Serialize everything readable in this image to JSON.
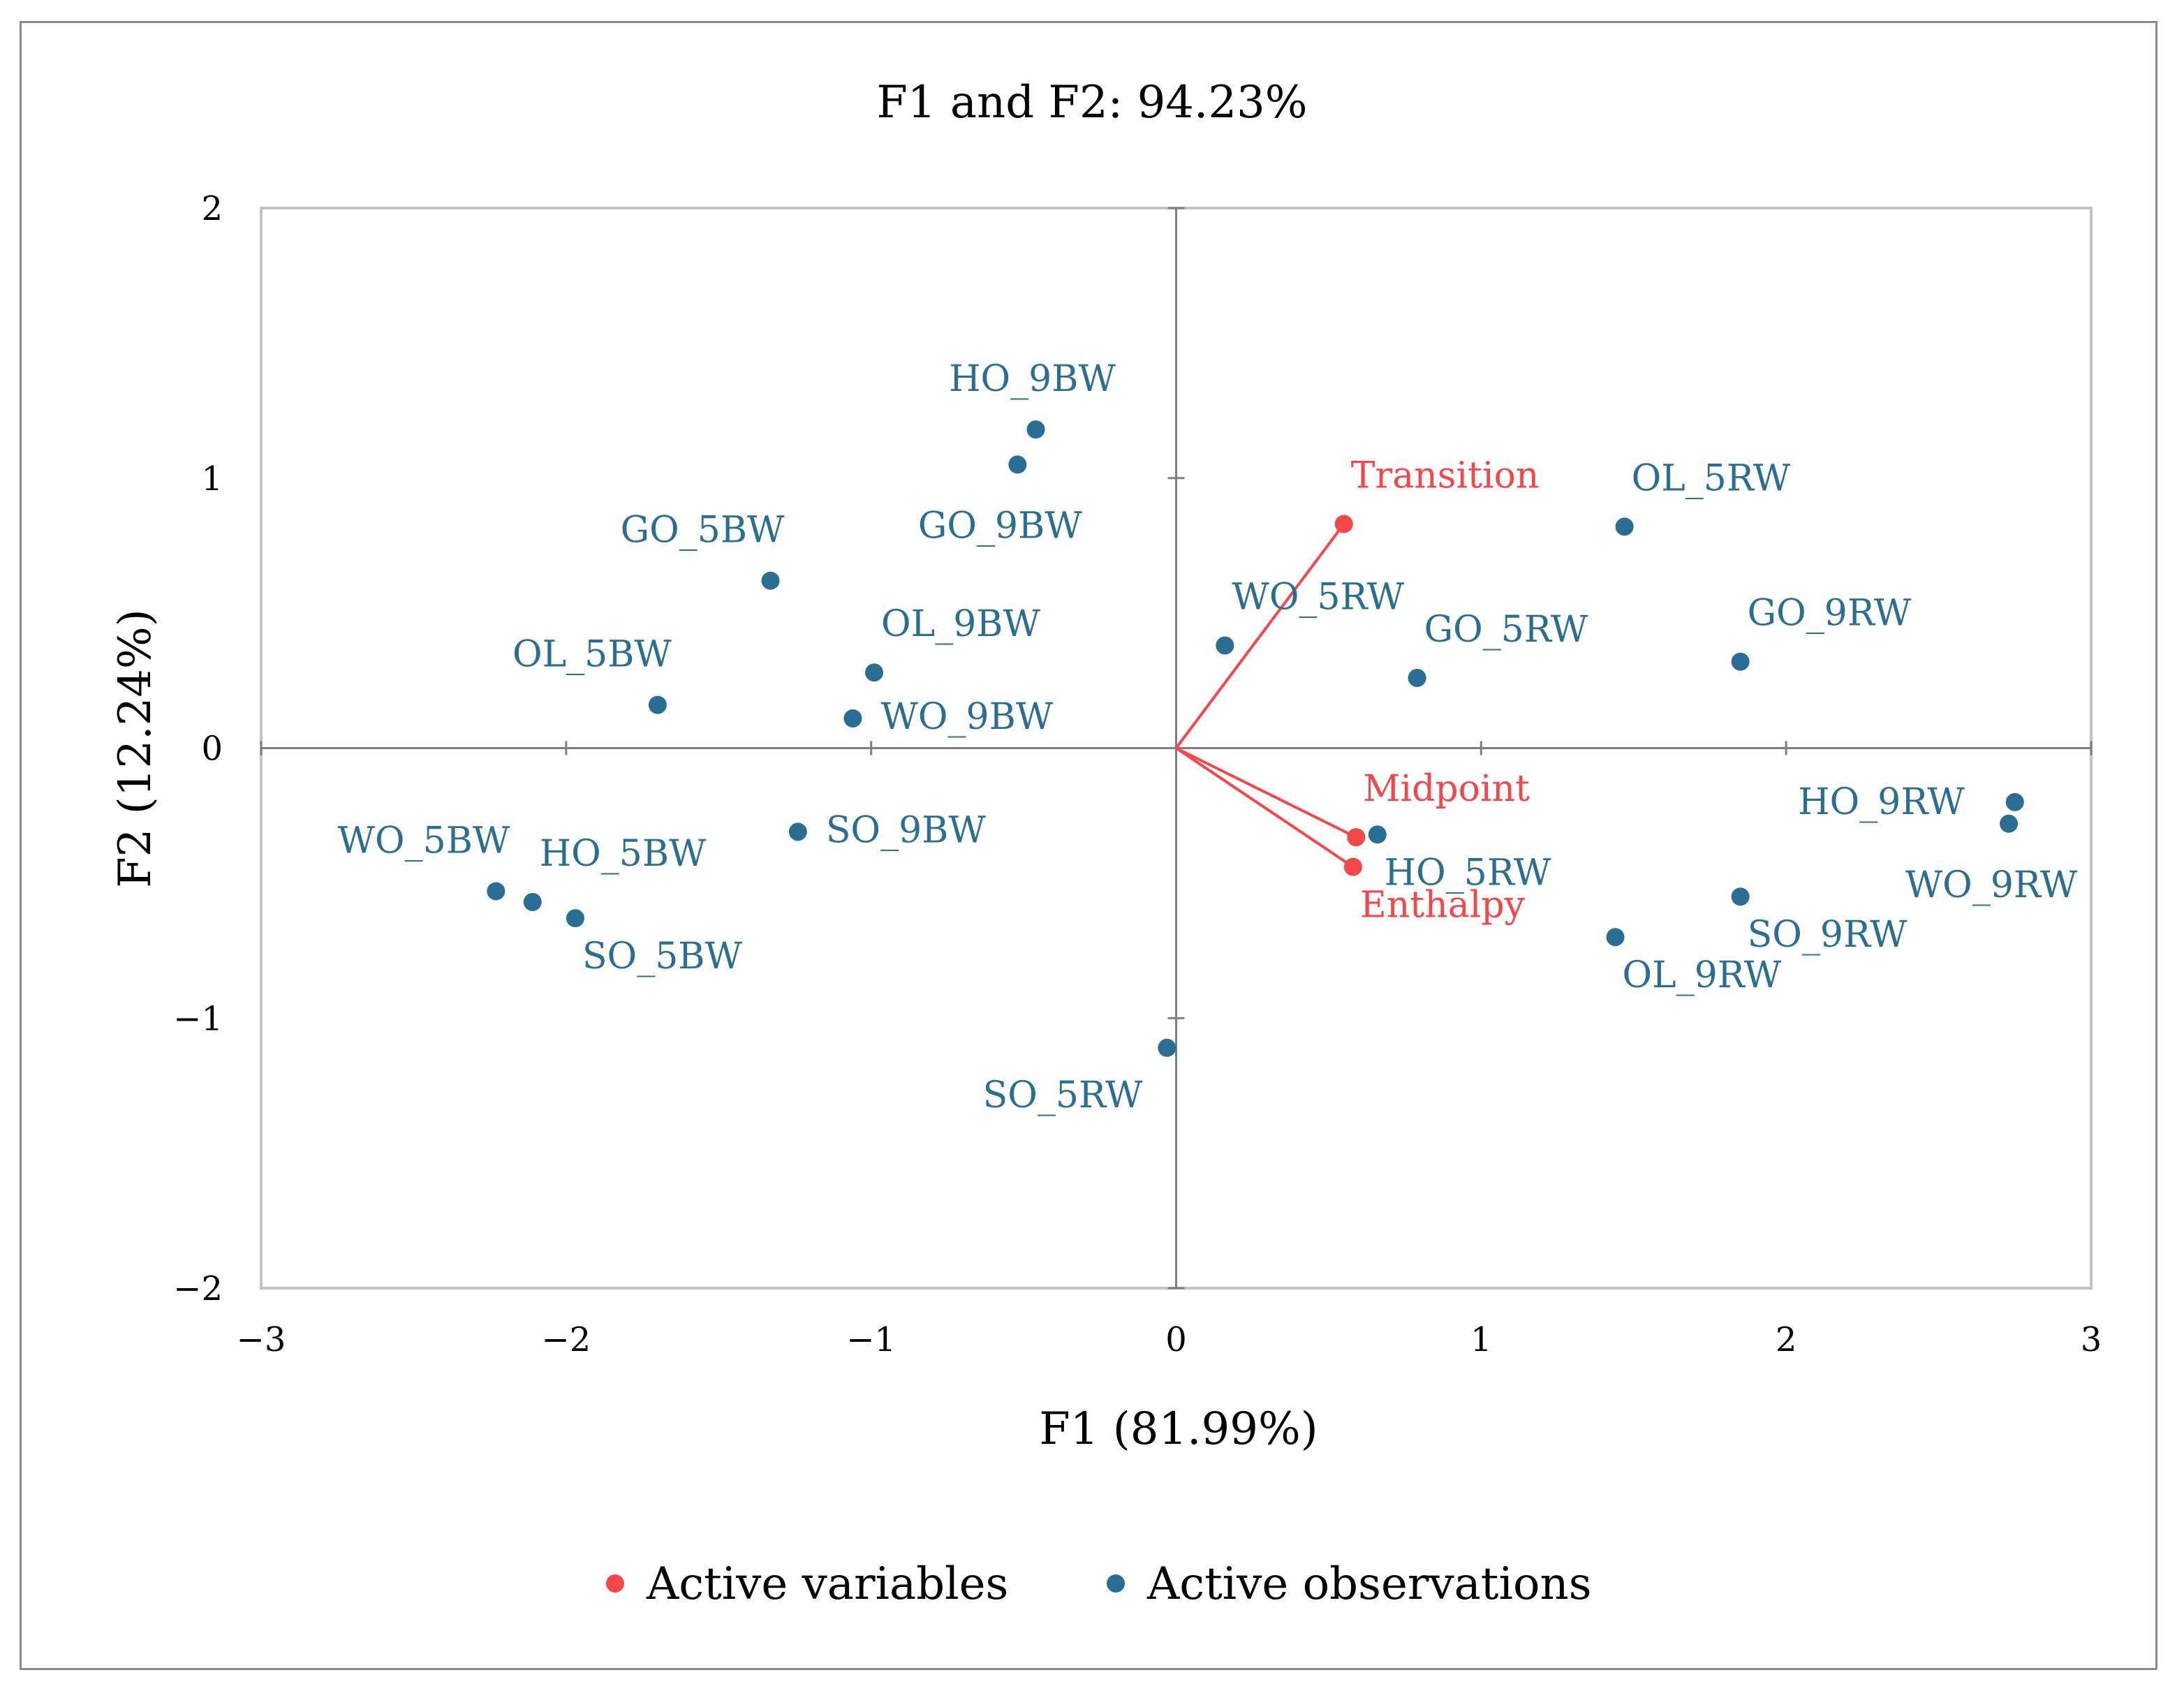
{
  "chart_data": {
    "type": "scatter",
    "title": "F1 and F2: 94.23%",
    "xlabel": "F1 (81.99%)",
    "ylabel": "F2 (12.24%)",
    "xlim": [
      -3,
      3
    ],
    "ylim": [
      -2,
      2
    ],
    "x_ticks": [
      "−3",
      "−2",
      "−1",
      "0",
      "1",
      "2",
      "3"
    ],
    "y_ticks": [
      "−2",
      "−1",
      "0",
      "1",
      "2"
    ],
    "grid": false,
    "legend_position": "bottom",
    "colors": {
      "variables": "#f4474a",
      "observations": "#2a6f93"
    },
    "series": [
      {
        "name": "Active variables",
        "kind": "vectors",
        "points": [
          {
            "label": "Transition",
            "x": 0.55,
            "y": 0.83,
            "label_pos": "above-right"
          },
          {
            "label": "Midpoint",
            "x": 0.59,
            "y": -0.33,
            "label_pos": "above-right"
          },
          {
            "label": "Enthalpy",
            "x": 0.58,
            "y": -0.44,
            "label_pos": "below-right"
          }
        ]
      },
      {
        "name": "Active observations",
        "kind": "points",
        "points": [
          {
            "label": "HO_9BW",
            "x": -0.46,
            "y": 1.18,
            "label_pos": "above"
          },
          {
            "label": "GO_9BW",
            "x": -0.52,
            "y": 1.05,
            "label_pos": "below"
          },
          {
            "label": "GO_5BW",
            "x": -1.33,
            "y": 0.62,
            "label_pos": "above-left"
          },
          {
            "label": "OL_9BW",
            "x": -0.99,
            "y": 0.28,
            "label_pos": "above-right"
          },
          {
            "label": "OL_5BW",
            "x": -1.7,
            "y": 0.16,
            "label_pos": "above-left"
          },
          {
            "label": "WO_9BW",
            "x": -1.06,
            "y": 0.11,
            "label_pos": "right"
          },
          {
            "label": "SO_9BW",
            "x": -1.24,
            "y": -0.31,
            "label_pos": "right"
          },
          {
            "label": "WO_5BW",
            "x": -2.23,
            "y": -0.53,
            "label_pos": "above-left"
          },
          {
            "label": "HO_5BW",
            "x": -2.11,
            "y": -0.57,
            "label_pos": "above-right"
          },
          {
            "label": "SO_5BW",
            "x": -1.97,
            "y": -0.63,
            "label_pos": "below-right"
          },
          {
            "label": "SO_5RW",
            "x": -0.03,
            "y": -1.11,
            "label_pos": "below-left"
          },
          {
            "label": "WO_5RW",
            "x": 0.16,
            "y": 0.38,
            "label_pos": "above-right"
          },
          {
            "label": "GO_5RW",
            "x": 0.79,
            "y": 0.26,
            "label_pos": "above-right"
          },
          {
            "label": "HO_5RW",
            "x": 0.66,
            "y": -0.32,
            "label_pos": "below-right"
          },
          {
            "label": "OL_5RW",
            "x": 1.47,
            "y": 0.82,
            "label_pos": "above-right"
          },
          {
            "label": "GO_9RW",
            "x": 1.85,
            "y": 0.32,
            "label_pos": "above-right"
          },
          {
            "label": "OL_9RW",
            "x": 1.44,
            "y": -0.7,
            "label_pos": "below-right"
          },
          {
            "label": "SO_9RW",
            "x": 1.85,
            "y": -0.55,
            "label_pos": "below-right"
          },
          {
            "label": "HO_9RW",
            "x": 2.75,
            "y": -0.2,
            "label_pos": "left"
          },
          {
            "label": "WO_9RW",
            "x": 2.73,
            "y": -0.28,
            "label_pos": "below"
          }
        ]
      }
    ]
  }
}
